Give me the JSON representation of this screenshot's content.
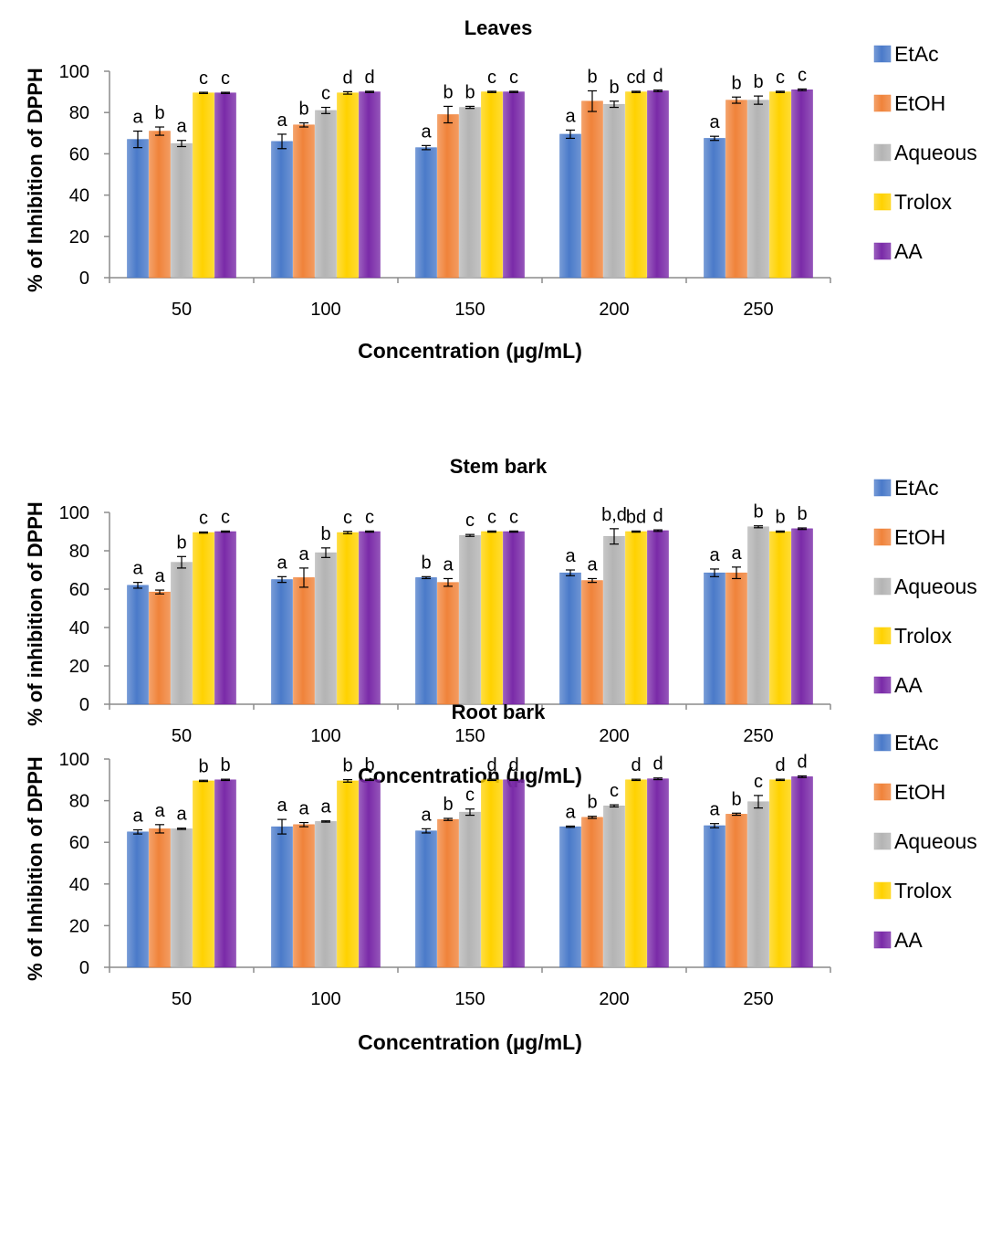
{
  "colors": {
    "EtAc": "#4a7ac9",
    "EtOH": "#f0833a",
    "Aqueous": "#b4b4b4",
    "Trolox": "#ffd200",
    "AA": "#7a2aa8",
    "axis": "#8c8c8c",
    "text": "#000000"
  },
  "legend_position": "right",
  "chart_data": [
    {
      "type": "bar",
      "title": "Leaves",
      "xlabel": "Concentration (µg/mL)",
      "ylabel": "% of Inhibition of DPPH",
      "ylim": [
        0,
        100
      ],
      "yticks": [
        "0",
        "20",
        "40",
        "60",
        "80",
        "100"
      ],
      "grid": false,
      "categories": [
        "50",
        "100",
        "150",
        "200",
        "250"
      ],
      "series": [
        {
          "name": "EtAc",
          "values": [
            67,
            66,
            63,
            69.5,
            67.5
          ],
          "errors": [
            4,
            3.5,
            1,
            2,
            1
          ],
          "labels": [
            "a",
            "a",
            "a",
            "a",
            "a"
          ]
        },
        {
          "name": "EtOH",
          "values": [
            71,
            74,
            79,
            85.5,
            86
          ],
          "errors": [
            2,
            1,
            4,
            5,
            1.5
          ],
          "labels": [
            "b",
            "b",
            "b",
            "b",
            "b"
          ]
        },
        {
          "name": "Aqueous",
          "values": [
            65,
            81,
            82.5,
            84,
            86
          ],
          "errors": [
            1.5,
            1.5,
            0.5,
            1.5,
            2
          ],
          "labels": [
            "a",
            "c",
            "b",
            "b",
            "b"
          ]
        },
        {
          "name": "Trolox",
          "values": [
            89.5,
            89.5,
            90,
            90,
            90
          ],
          "errors": [
            0.3,
            0.6,
            0.3,
            0.3,
            0.3
          ],
          "labels": [
            "c",
            "d",
            "c",
            "cd",
            "c"
          ]
        },
        {
          "name": "AA",
          "values": [
            89.5,
            90,
            90,
            90.5,
            91
          ],
          "errors": [
            0.3,
            0.3,
            0.3,
            0.4,
            0.4
          ],
          "labels": [
            "c",
            "d",
            "c",
            "d",
            "c"
          ]
        }
      ]
    },
    {
      "type": "bar",
      "title": "Stem bark",
      "xlabel": "Concentration (µg/mL)",
      "ylabel": "% of inhibition of DPPH",
      "ylim": [
        0,
        100
      ],
      "yticks": [
        "0",
        "20",
        "40",
        "60",
        "80",
        "100"
      ],
      "grid": false,
      "categories": [
        "50",
        "100",
        "150",
        "200",
        "250"
      ],
      "series": [
        {
          "name": "EtAc",
          "values": [
            62,
            65,
            66,
            68.5,
            68.5
          ],
          "errors": [
            1.5,
            1.5,
            0.5,
            1.5,
            2
          ],
          "labels": [
            "a",
            "a",
            "b",
            "a",
            "a"
          ]
        },
        {
          "name": "EtOH",
          "values": [
            58.5,
            66,
            63.5,
            64.5,
            68.5
          ],
          "errors": [
            1,
            5,
            2,
            1,
            3
          ],
          "labels": [
            "a",
            "a",
            "a",
            "a",
            "a"
          ]
        },
        {
          "name": "Aqueous",
          "values": [
            74,
            79,
            88,
            87.5,
            92.5
          ],
          "errors": [
            3,
            2.5,
            0.5,
            4,
            0.5
          ],
          "labels": [
            "b",
            "b",
            "c",
            "b,d",
            "b"
          ]
        },
        {
          "name": "Trolox",
          "values": [
            89.5,
            89.5,
            90,
            90,
            90
          ],
          "errors": [
            0.3,
            0.6,
            0.3,
            0.3,
            0.3
          ],
          "labels": [
            "c",
            "c",
            "c",
            "bd",
            "b"
          ]
        },
        {
          "name": "AA",
          "values": [
            90,
            90,
            90,
            90.5,
            91.5
          ],
          "errors": [
            0.3,
            0.3,
            0.3,
            0.4,
            0.4
          ],
          "labels": [
            "c",
            "c",
            "c",
            "d",
            "b"
          ]
        }
      ]
    },
    {
      "type": "bar",
      "title": "Root bark",
      "xlabel": "Concentration (µg/mL)",
      "ylabel": "% of Inhibition of DPPH",
      "ylim": [
        0,
        100
      ],
      "yticks": [
        "0",
        "20",
        "40",
        "60",
        "80",
        "100"
      ],
      "grid": false,
      "categories": [
        "50",
        "100",
        "150",
        "200",
        "250"
      ],
      "series": [
        {
          "name": "EtAc",
          "values": [
            65,
            67.5,
            65.5,
            67.5,
            68
          ],
          "errors": [
            1,
            3.5,
            1,
            0.3,
            1
          ],
          "labels": [
            "a",
            "a",
            "a",
            "a",
            "a"
          ]
        },
        {
          "name": "EtOH",
          "values": [
            66.5,
            68.5,
            71,
            72,
            73.5
          ],
          "errors": [
            2,
            1,
            0.5,
            0.5,
            0.5
          ],
          "labels": [
            "a",
            "a",
            "b",
            "b",
            "b"
          ]
        },
        {
          "name": "Aqueous",
          "values": [
            66.5,
            70,
            74.5,
            77.5,
            79.5
          ],
          "errors": [
            0.3,
            0.3,
            1.5,
            0.5,
            3
          ],
          "labels": [
            "a",
            "a",
            "c",
            "c",
            "c"
          ]
        },
        {
          "name": "Trolox",
          "values": [
            89.5,
            89.5,
            90,
            90,
            90
          ],
          "errors": [
            0.3,
            0.6,
            0.3,
            0.3,
            0.3
          ],
          "labels": [
            "b",
            "b",
            "d",
            "d",
            "d"
          ]
        },
        {
          "name": "AA",
          "values": [
            90,
            90,
            90,
            90.5,
            91.5
          ],
          "errors": [
            0.3,
            0.3,
            0.3,
            0.4,
            0.4
          ],
          "labels": [
            "b",
            "b",
            "d",
            "d",
            "d"
          ]
        }
      ]
    }
  ]
}
